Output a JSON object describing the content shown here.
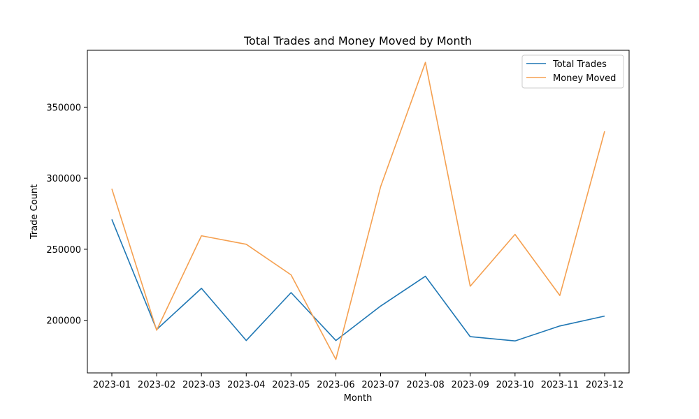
{
  "chart_data": {
    "type": "line",
    "title": "Total Trades and Money Moved by Month",
    "xlabel": "Month",
    "ylabel": "Trade Count",
    "categories": [
      "2023-01",
      "2023-02",
      "2023-03",
      "2023-04",
      "2023-05",
      "2023-06",
      "2023-07",
      "2023-08",
      "2023-09",
      "2023-10",
      "2023-11",
      "2023-12"
    ],
    "ylim": [
      163000,
      390000
    ],
    "yticks": [
      200000,
      250000,
      300000,
      350000
    ],
    "grid": false,
    "legend_position": "top-right",
    "series": [
      {
        "name": "Total Trades",
        "color": "#1f77b4",
        "values": [
          271000,
          193500,
          222500,
          185800,
          219500,
          185800,
          210000,
          231000,
          188500,
          185500,
          196000,
          203000
        ]
      },
      {
        "name": "Money Moved",
        "color": "#f5a050",
        "values": [
          292500,
          193000,
          259500,
          253500,
          232000,
          172500,
          294000,
          381500,
          224000,
          260500,
          217500,
          333000
        ]
      }
    ]
  }
}
